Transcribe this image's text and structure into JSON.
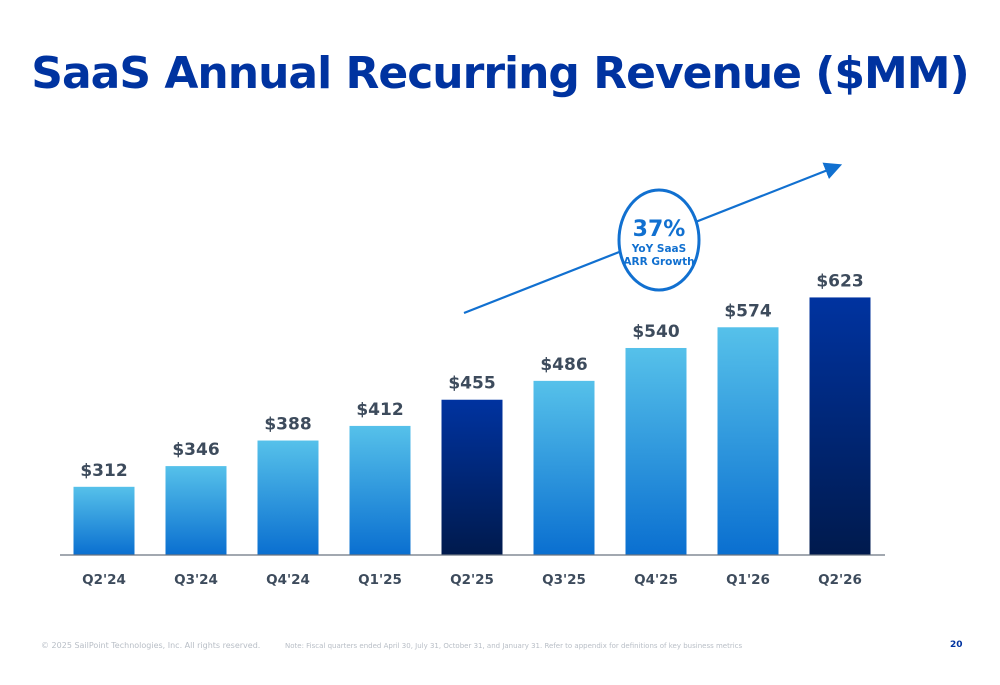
{
  "chart_data": {
    "type": "bar",
    "title": "SaaS Annual Recurring Revenue ($MM)",
    "categories": [
      "Q2'24",
      "Q3'24",
      "Q4'24",
      "Q1'25",
      "Q2'25",
      "Q3'25",
      "Q4'25",
      "Q1'26",
      "Q2'26"
    ],
    "values": [
      312,
      346,
      388,
      412,
      455,
      486,
      540,
      574,
      623
    ],
    "data_labels": [
      "$312",
      "$346",
      "$388",
      "$412",
      "$455",
      "$486",
      "$540",
      "$574",
      "$623"
    ],
    "highlighted": [
      "Q2'25",
      "Q2'26"
    ],
    "ylim": [
      200,
      650
    ],
    "grid": false,
    "xlabel": "",
    "ylabel": "",
    "annotation": {
      "value": "37%",
      "line1": "YoY SaaS",
      "line2": "ARR Growth"
    },
    "colors": {
      "bar_top": "#56c1ea",
      "bar_bottom": "#0a6fd0",
      "highlight_top": "#0033a0",
      "highlight_bottom": "#001a4d",
      "label": "#3d4b5c",
      "accent": "#1170d0",
      "title": "#0033a0"
    }
  },
  "footer": {
    "copyright": "© 2025 SailPoint Technologies, Inc. All rights reserved.",
    "note": "Note: Fiscal quarters ended April 30, July 31, October 31, and January 31.  Refer to appendix for definitions of key business metrics",
    "page_number": "20"
  }
}
